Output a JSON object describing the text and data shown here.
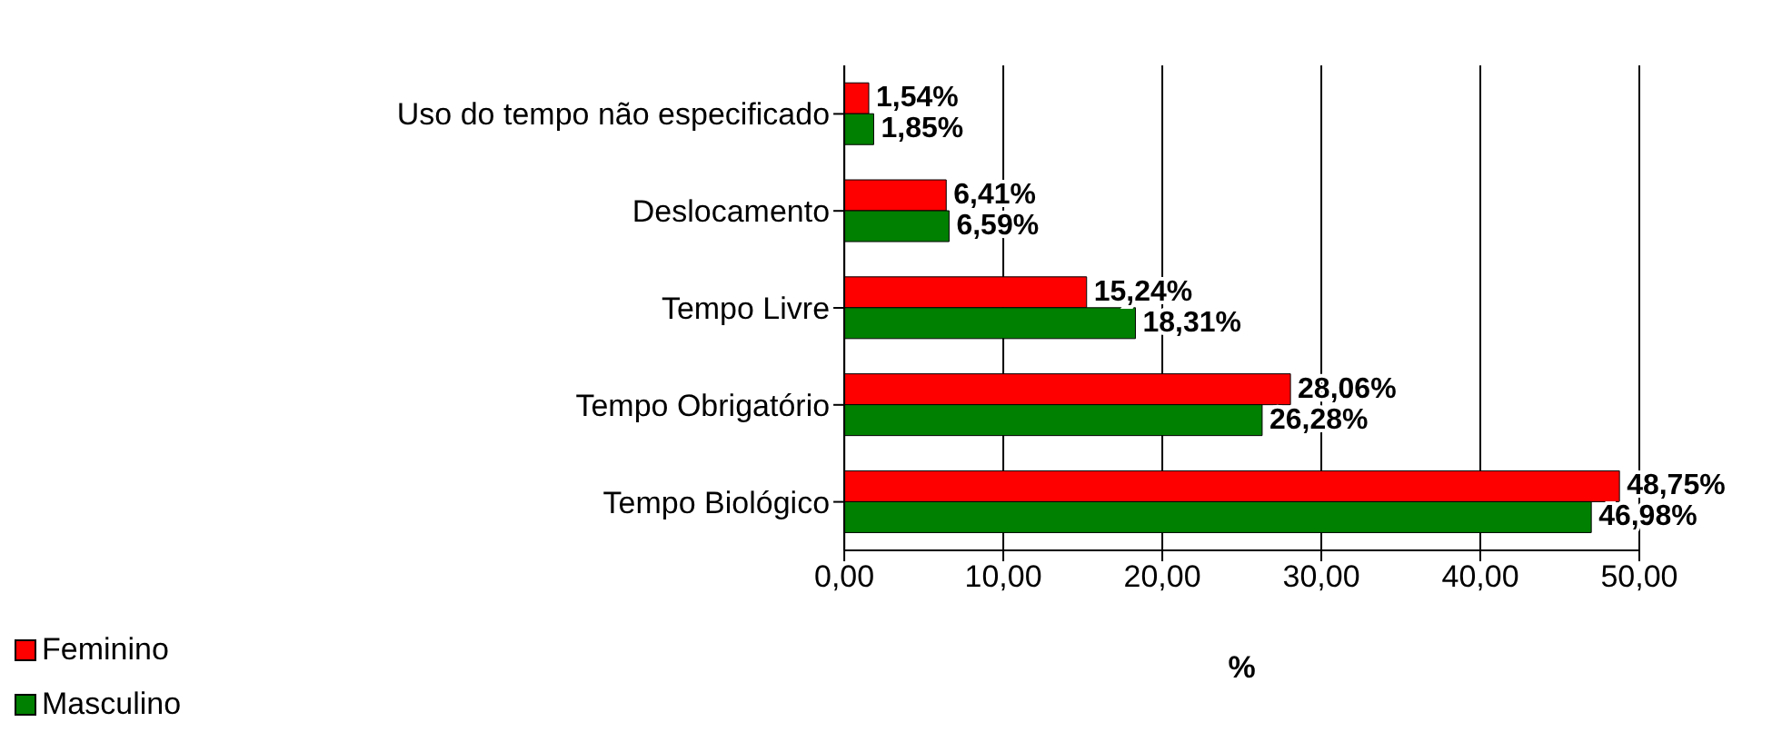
{
  "chart_data": {
    "type": "bar",
    "orientation": "horizontal",
    "xlabel": "%",
    "categories": [
      "Uso do tempo não especificado",
      "Deslocamento",
      "Tempo Livre",
      "Tempo Obrigatório",
      "Tempo Biológico"
    ],
    "series": [
      {
        "name": "Feminino",
        "color": "#ff0000",
        "values": [
          1.54,
          6.41,
          15.24,
          28.06,
          48.75
        ],
        "value_labels": [
          "1,54%",
          "6,41%",
          "15,24%",
          "28,06%",
          "48,75%"
        ]
      },
      {
        "name": "Masculino",
        "color": "#008000",
        "values": [
          1.85,
          6.59,
          18.31,
          26.28,
          46.98
        ],
        "value_labels": [
          "1,85%",
          "6,59%",
          "18,31%",
          "26,28%",
          "46,98%"
        ]
      }
    ],
    "xlim": [
      0,
      50
    ],
    "xticks": [
      {
        "value": 0,
        "label": "0,00"
      },
      {
        "value": 10,
        "label": "10,00"
      },
      {
        "value": 20,
        "label": "20,00"
      },
      {
        "value": 30,
        "label": "30,00"
      },
      {
        "value": 40,
        "label": "40,00"
      },
      {
        "value": 50,
        "label": "50,00"
      }
    ],
    "grid": "x",
    "legend": "bottom left"
  }
}
